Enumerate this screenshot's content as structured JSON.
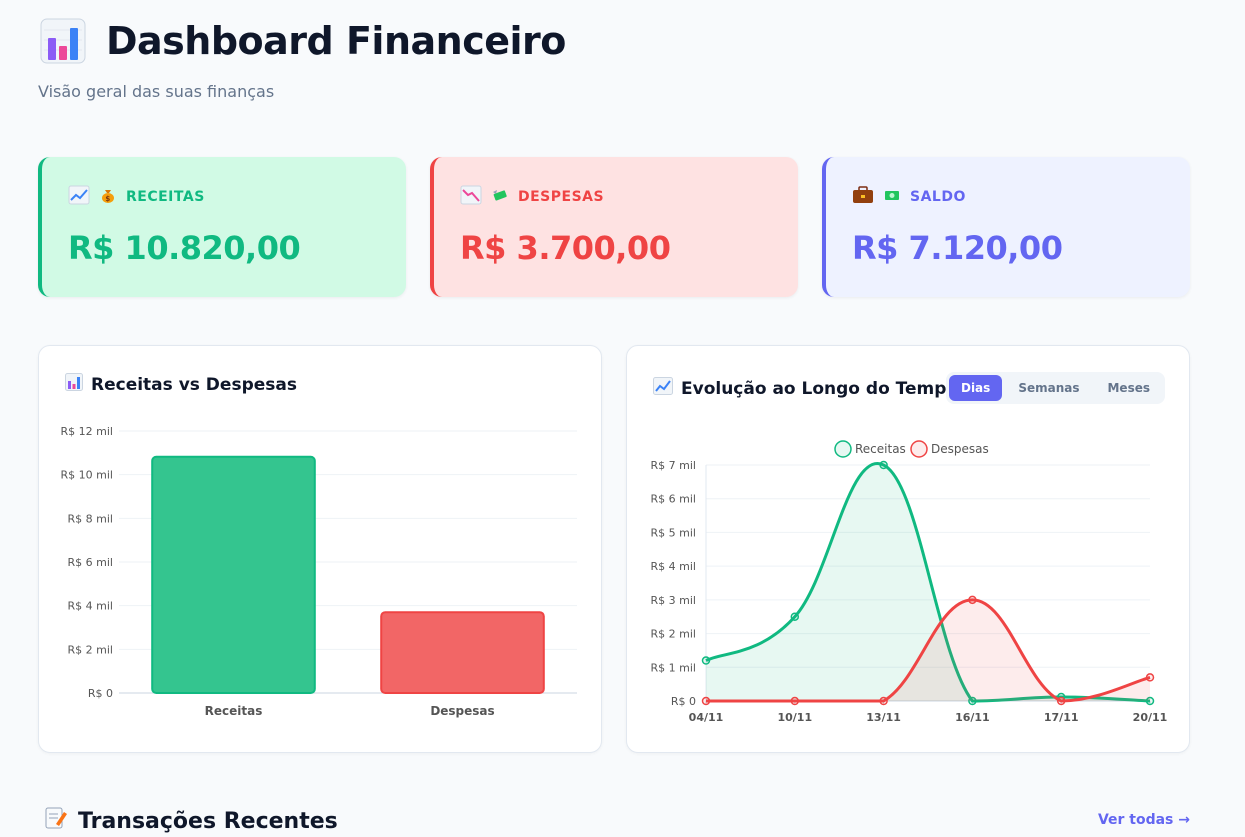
{
  "header": {
    "title": "Dashboard Financeiro",
    "subtitle": "Visão geral das suas finanças"
  },
  "cards": [
    {
      "label": "RECEITAS",
      "value": "R$ 10.820,00",
      "icon": "chart-up-icon",
      "emoji": "money-bag-icon",
      "color": "#10b981"
    },
    {
      "label": "DESPESAS",
      "value": "R$ 3.700,00",
      "icon": "chart-down-icon",
      "emoji": "money-wings-icon",
      "color": "#ef4444"
    },
    {
      "label": "SALDO",
      "value": "R$ 7.120,00",
      "icon": "briefcase-icon",
      "emoji": "banknote-icon",
      "color": "#6366f1"
    }
  ],
  "bar_panel": {
    "title": "Receitas vs Despesas"
  },
  "line_panel": {
    "title": "Evolução ao Longo do Tempo",
    "tabs": [
      "Dias",
      "Semanas",
      "Meses"
    ],
    "active_tab": "Dias"
  },
  "chart_data": [
    {
      "type": "bar",
      "categories": [
        "Receitas",
        "Despesas"
      ],
      "values": [
        10820,
        3700
      ],
      "colors": [
        "#34c58f",
        "#f26666"
      ],
      "ylim": [
        0,
        12000
      ],
      "yticks": [
        0,
        2000,
        4000,
        6000,
        8000,
        10000,
        12000
      ],
      "ytick_labels": [
        "R$ 0",
        "R$ 2 mil",
        "R$ 4 mil",
        "R$ 6 mil",
        "R$ 8 mil",
        "R$ 10 mil",
        "R$ 12 mil"
      ],
      "grid": true
    },
    {
      "type": "line",
      "x": [
        "04/11",
        "10/11",
        "13/11",
        "16/11",
        "17/11",
        "20/11"
      ],
      "series": [
        {
          "name": "Receitas",
          "values": [
            1200,
            2500,
            7000,
            0,
            120,
            0
          ],
          "color": "#10b981"
        },
        {
          "name": "Despesas",
          "values": [
            0,
            0,
            0,
            3000,
            0,
            700
          ],
          "color": "#ef4444"
        }
      ],
      "ylim": [
        0,
        7000
      ],
      "yticks": [
        0,
        1000,
        2000,
        3000,
        4000,
        5000,
        6000,
        7000
      ],
      "ytick_labels": [
        "R$ 0",
        "R$ 1 mil",
        "R$ 2 mil",
        "R$ 3 mil",
        "R$ 4 mil",
        "R$ 5 mil",
        "R$ 6 mil",
        "R$ 7 mil"
      ],
      "legend": "top",
      "grid": true
    }
  ],
  "transactions": {
    "title": "Transações Recentes",
    "link": "Ver todas →"
  }
}
